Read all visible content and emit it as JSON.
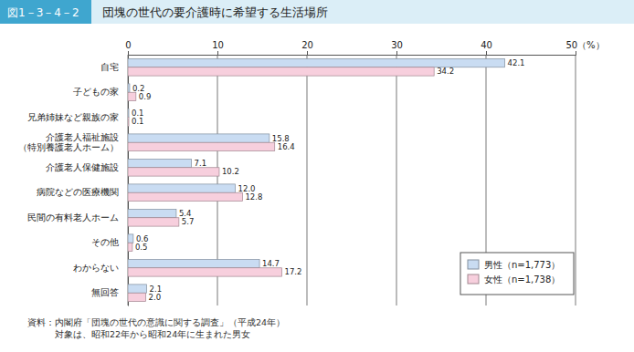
{
  "chart_data": {
    "type": "bar",
    "orientation": "horizontal",
    "figure_label": "図1－3－4－2",
    "title": "団塊の世代の要介護時に希望する生活場所",
    "categories": [
      "自宅",
      "子どもの家",
      "兄弟姉妹など親族の家",
      "介護老人福祉施設\n（特別養護老人ホーム）",
      "介護老人保健施設",
      "病院などの医療機関",
      "民間の有料老人ホーム",
      "その他",
      "わからない",
      "無回答"
    ],
    "series": [
      {
        "name": "男性（n=1,773）",
        "color": "#c9dcf2",
        "values": [
          42.1,
          0.2,
          0.1,
          15.8,
          7.1,
          12.0,
          5.4,
          0.6,
          14.7,
          2.1
        ],
        "value_labels": [
          "42.1",
          "0.2",
          "0.1",
          "15.8",
          "7.1",
          "12.0",
          "5.4",
          "0.6",
          "14.7",
          "2.1"
        ]
      },
      {
        "name": "女性（n=1,738）",
        "color": "#f7cfdd",
        "values": [
          34.2,
          0.9,
          0.1,
          16.4,
          10.2,
          12.8,
          5.7,
          0.5,
          17.2,
          2.0
        ],
        "value_labels": [
          "34.2",
          "0.9",
          "0.1",
          "16.4",
          "10.2",
          "12.8",
          "5.7",
          "0.5",
          "17.2",
          "2.0"
        ]
      }
    ],
    "xlim": [
      0,
      50
    ],
    "xticks": [
      0,
      10,
      20,
      30,
      40,
      {
        "value": 50,
        "label": "50（%）"
      }
    ],
    "grid": true,
    "data_labels": true,
    "legend": "lower right",
    "notes": [
      "資料：内閣府「団塊の世代の意識に関する調査」（平成24年）",
      "　　　対象は、昭和22年から昭和24年に生まれた男女"
    ]
  }
}
